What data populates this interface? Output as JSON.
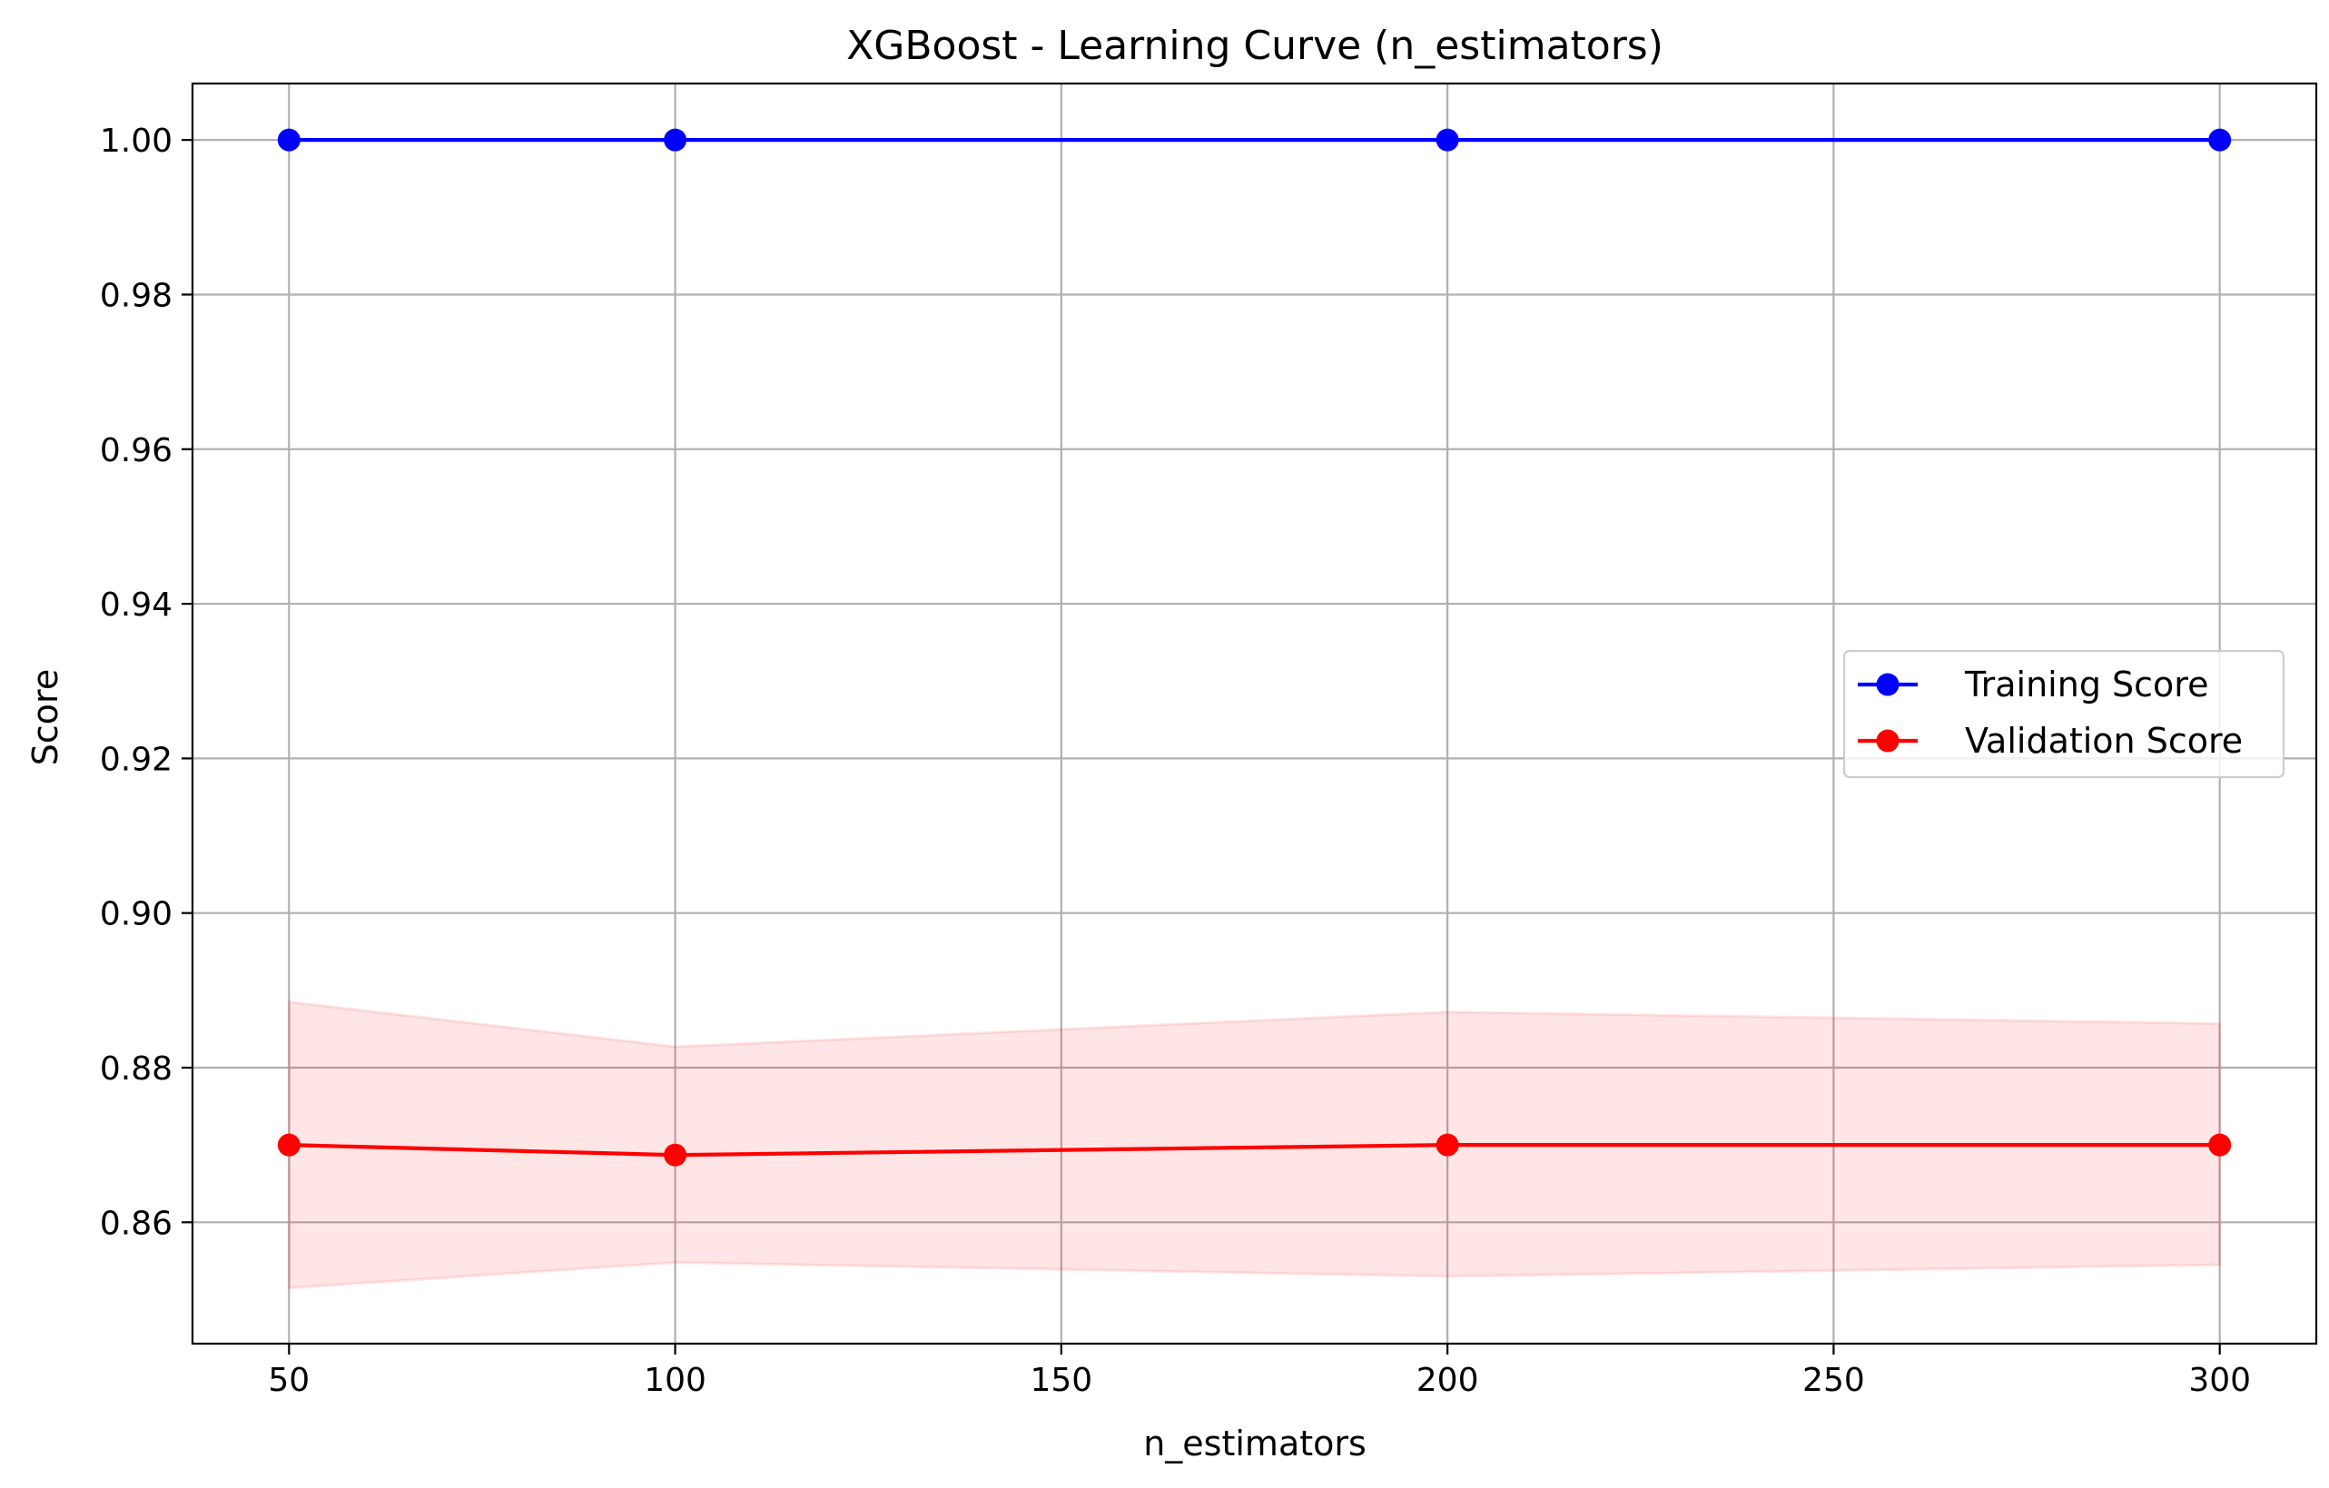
{
  "chart_data": {
    "type": "line",
    "title": "XGBoost - Learning Curve (n_estimators)",
    "xlabel": "n_estimators",
    "ylabel": "Score",
    "x": [
      50,
      100,
      200,
      300
    ],
    "xlim": [
      37.5,
      312.5
    ],
    "ylim": [
      0.8443,
      1.0073
    ],
    "xticks": [
      50,
      100,
      150,
      200,
      250,
      300
    ],
    "xtick_labels": [
      "50",
      "100",
      "150",
      "200",
      "250",
      "300"
    ],
    "yticks": [
      0.86,
      0.88,
      0.9,
      0.92,
      0.94,
      0.96,
      0.98,
      1.0
    ],
    "ytick_labels": [
      "0.86",
      "0.88",
      "0.90",
      "0.92",
      "0.94",
      "0.96",
      "0.98",
      "1.00"
    ],
    "grid": true,
    "legend_position": "center-right",
    "series": [
      {
        "name": "Training Score",
        "color": "#0000ff",
        "marker": "circle",
        "values": [
          1.0,
          1.0,
          1.0,
          1.0
        ]
      },
      {
        "name": "Validation Score",
        "color": "#ff0000",
        "marker": "circle",
        "values": [
          0.87,
          0.8687,
          0.87,
          0.87
        ],
        "band": {
          "color": "#ffcccc",
          "lower": [
            0.8515,
            0.8548,
            0.853,
            0.8545
          ],
          "upper": [
            0.8885,
            0.8827,
            0.8872,
            0.8857
          ]
        }
      }
    ]
  }
}
